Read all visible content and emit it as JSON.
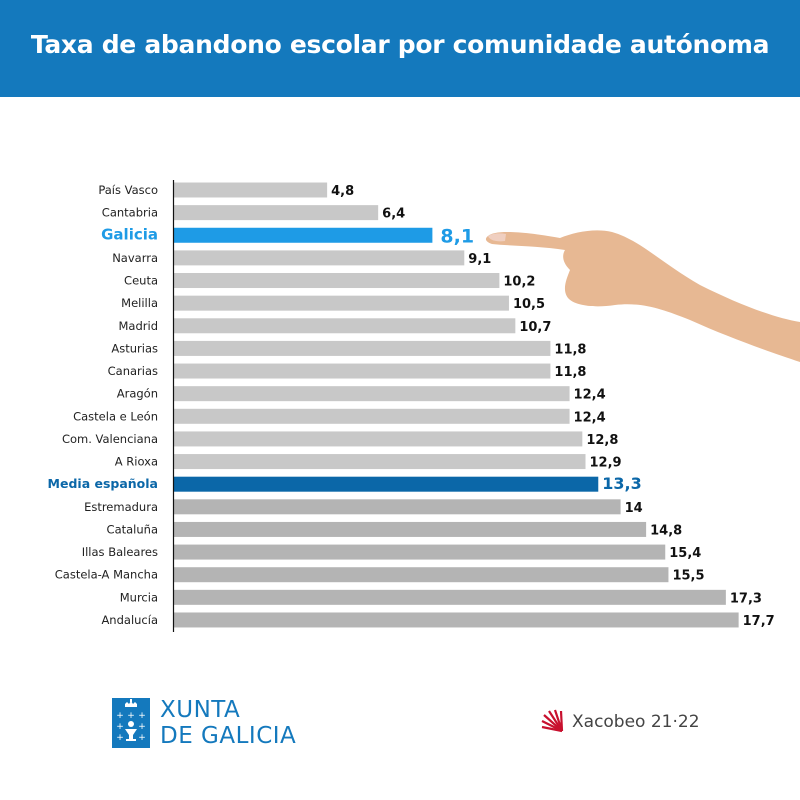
{
  "header": {
    "title": "Taxa de abandono escolar por comunidade autónoma"
  },
  "colors": {
    "header_bg": "#1479bd",
    "galicia": "#1e9be6",
    "media": "#0b67a8",
    "bar_light": "#c8c8c8",
    "bar_dark": "#b4b4b4"
  },
  "chart_data": {
    "type": "bar",
    "orientation": "horizontal",
    "title": "Taxa de abandono escolar por comunidade autónoma",
    "xlabel": "",
    "ylabel": "",
    "xlim": [
      0,
      18
    ],
    "grid": false,
    "categories": [
      "País Vasco",
      "Cantabria",
      "Galicia",
      "Navarra",
      "Ceuta",
      "Melilla",
      "Madrid",
      "Asturias",
      "Canarias",
      "Aragón",
      "Castela e León",
      "Com. Valenciana",
      "A Rioxa",
      "Media española",
      "Estremadura",
      "Cataluña",
      "Illas Baleares",
      "Castela-A Mancha",
      "Murcia",
      "Andalucía"
    ],
    "values": [
      4.8,
      6.4,
      8.1,
      9.1,
      10.2,
      10.5,
      10.7,
      11.8,
      11.8,
      12.4,
      12.4,
      12.8,
      12.9,
      13.3,
      14,
      14.8,
      15.4,
      15.5,
      17.3,
      17.7
    ],
    "value_labels": [
      "4,8",
      "6,4",
      "8,1",
      "9,1",
      "10,2",
      "10,5",
      "10,7",
      "11,8",
      "11,8",
      "12,4",
      "12,4",
      "12,8",
      "12,9",
      "13,3",
      "14",
      "14,8",
      "15,4",
      "15,5",
      "17,3",
      "17,7"
    ],
    "highlights": {
      "Galicia": "galicia",
      "Media española": "media"
    }
  },
  "footer": {
    "xunta_line1": "XUNTA",
    "xunta_line2": "DE GALICIA",
    "xacobeo": "Xacobeo 21·22"
  }
}
